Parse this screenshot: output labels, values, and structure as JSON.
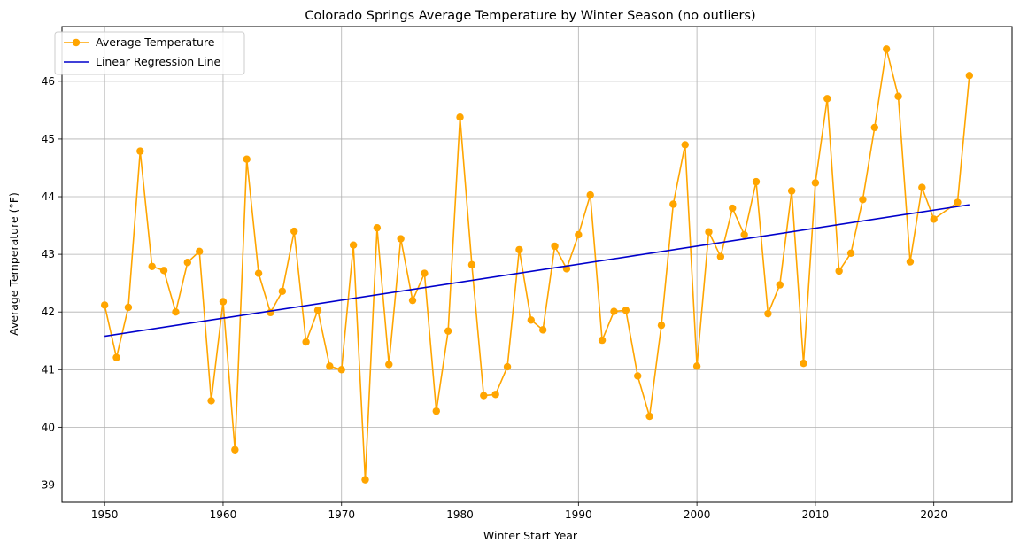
{
  "chart_data": {
    "type": "line",
    "title": "Colorado Springs Average Temperature by Winter Season (no outliers)",
    "xlabel": "Winter Start Year",
    "ylabel": "Average Temperature (°F)",
    "xlim": [
      1946.4,
      2026.6
    ],
    "ylim": [
      38.7,
      46.95
    ],
    "xticks": [
      1950,
      1960,
      1970,
      1980,
      1990,
      2000,
      2010,
      2020
    ],
    "yticks": [
      39,
      40,
      41,
      42,
      43,
      44,
      45,
      46
    ],
    "grid": true,
    "legend_position": "top-left",
    "series": [
      {
        "name": "Average Temperature",
        "color": "#ffa500",
        "marker": "circle",
        "x": [
          1950,
          1951,
          1952,
          1953,
          1954,
          1955,
          1956,
          1957,
          1958,
          1959,
          1960,
          1961,
          1962,
          1963,
          1964,
          1965,
          1966,
          1967,
          1968,
          1969,
          1970,
          1971,
          1972,
          1973,
          1974,
          1975,
          1976,
          1977,
          1978,
          1979,
          1980,
          1981,
          1982,
          1983,
          1984,
          1985,
          1986,
          1987,
          1988,
          1989,
          1990,
          1991,
          1992,
          1993,
          1994,
          1995,
          1996,
          1997,
          1998,
          1999,
          2000,
          2001,
          2002,
          2003,
          2004,
          2005,
          2006,
          2007,
          2008,
          2009,
          2010,
          2011,
          2012,
          2013,
          2014,
          2015,
          2016,
          2017,
          2018,
          2019,
          2020,
          2022,
          2023
        ],
        "y": [
          42.12,
          41.21,
          42.08,
          44.79,
          42.79,
          42.72,
          42.0,
          42.86,
          43.05,
          40.46,
          42.18,
          39.61,
          44.65,
          42.67,
          41.99,
          42.36,
          43.4,
          41.48,
          42.03,
          41.06,
          41.0,
          43.16,
          39.09,
          43.46,
          41.09,
          43.27,
          42.2,
          42.67,
          40.28,
          41.67,
          45.38,
          42.82,
          40.55,
          40.57,
          41.05,
          43.08,
          41.86,
          41.69,
          43.14,
          42.75,
          43.34,
          44.03,
          41.51,
          42.01,
          42.03,
          40.89,
          40.19,
          41.77,
          43.87,
          44.9,
          41.06,
          43.39,
          42.96,
          43.8,
          43.34,
          44.26,
          41.97,
          42.47,
          44.1,
          41.11,
          44.24,
          45.7,
          42.71,
          43.02,
          43.95,
          45.2,
          46.56,
          45.74,
          42.87,
          44.16,
          43.61,
          43.9,
          46.1
        ]
      },
      {
        "name": "Linear Regression Line",
        "color": "#0000cc",
        "x": [
          1950,
          2023
        ],
        "y": [
          41.58,
          43.86
        ]
      }
    ]
  }
}
